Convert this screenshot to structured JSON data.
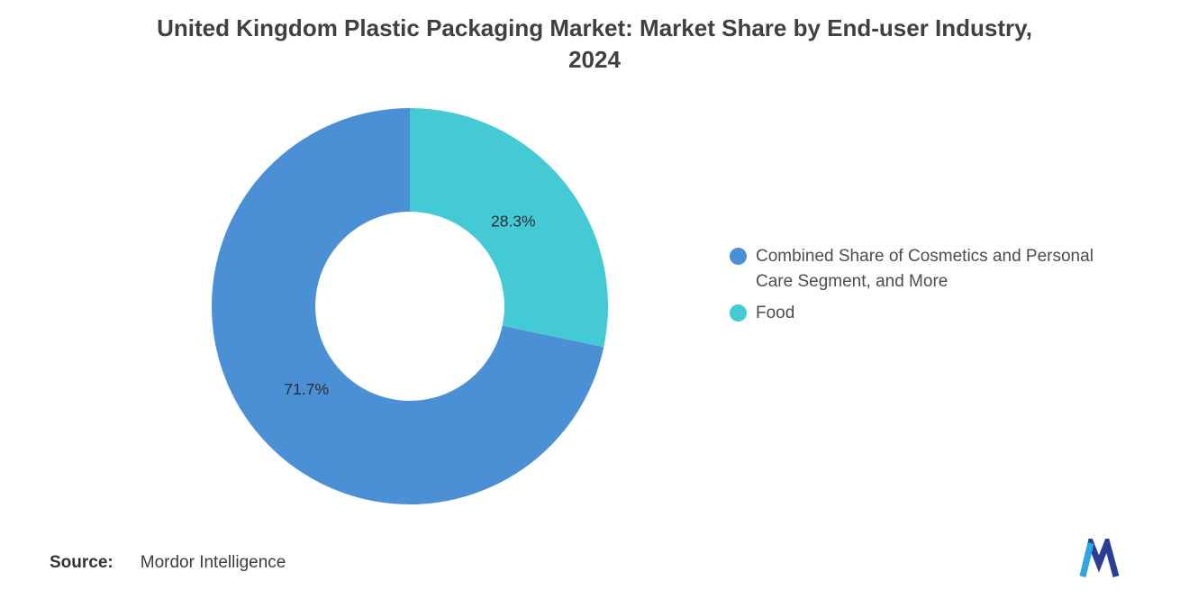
{
  "title": {
    "line1": "United Kingdom Plastic Packaging Market: Market Share by End-user Industry,",
    "line2": "2024"
  },
  "chart_data": {
    "type": "pie",
    "subtype": "donut",
    "title": "United Kingdom Plastic Packaging Market: Market Share by End-user Industry, 2024",
    "categories": [
      "Combined Share of Cosmetics and Personal Care Segment, and More",
      "Food"
    ],
    "values": [
      71.7,
      28.3
    ],
    "labels": [
      "71.7%",
      "28.3%"
    ],
    "colors": [
      "#4B8FD5",
      "#43CAD4"
    ],
    "start_angle_deg": -90,
    "direction": "counterclockwise",
    "inner_radius_ratio": 0.477,
    "legend_position": "right",
    "source": "Mordor Intelligence"
  },
  "legend": {
    "items": [
      {
        "label": "Combined Share of Cosmetics and Personal Care Segment, and More",
        "color": "#4B8FD5"
      },
      {
        "label": "Food",
        "color": "#43CAD4"
      }
    ]
  },
  "source": {
    "label": "Source:",
    "value": "Mordor Intelligence"
  },
  "logo": {
    "name": "mordor-intelligence-logo",
    "colors": {
      "light": "#2EA9E0",
      "dark": "#2B3E95"
    }
  }
}
